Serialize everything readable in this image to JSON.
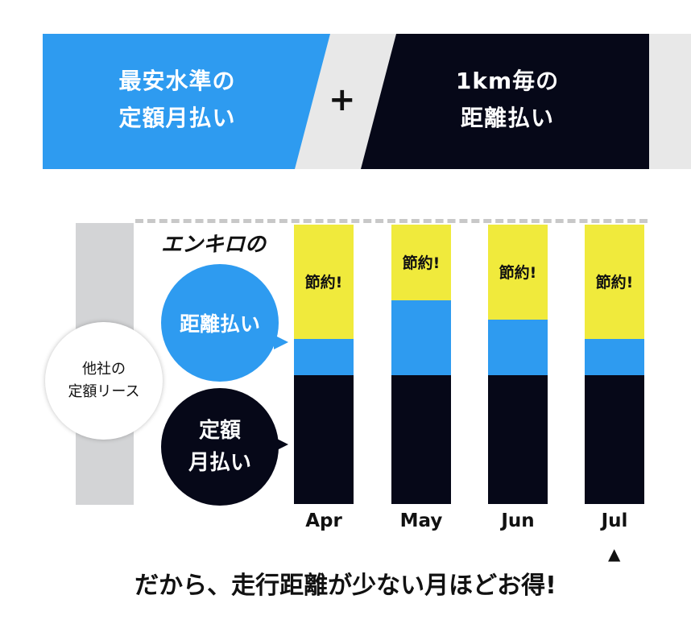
{
  "banner": {
    "left_line1": "最安水準の",
    "left_line2": "定額月払い",
    "plus": "+",
    "right_line1": "1km毎の",
    "right_line2": "距離払い"
  },
  "colors": {
    "blue": "#2e9bf0",
    "navy": "#060818",
    "yellow": "#f0ea3c",
    "gray": "#d3d4d6"
  },
  "labels": {
    "other_lease_line1": "他社の",
    "other_lease_line2": "定額リース",
    "brand_logo": "エンキロ",
    "brand_suffix": "の",
    "distance_bubble": "距離払い",
    "fixed_bubble_line1": "定額",
    "fixed_bubble_line2": "月払い",
    "savings": "節約!",
    "conclusion": "だから、走行距離が少ない月ほどお得!",
    "arrow": "▲"
  },
  "chart_data": {
    "type": "bar",
    "stacked": true,
    "categories": [
      "Apr",
      "May",
      "Jun",
      "Jul"
    ],
    "series": [
      {
        "name": "定額月払い",
        "values": [
          0.46,
          0.46,
          0.46,
          0.46
        ]
      },
      {
        "name": "距離払い",
        "values": [
          0.13,
          0.27,
          0.2,
          0.13
        ]
      },
      {
        "name": "節約!",
        "values": [
          0.41,
          0.27,
          0.34,
          0.41
        ]
      }
    ],
    "highlight": "Jul"
  }
}
